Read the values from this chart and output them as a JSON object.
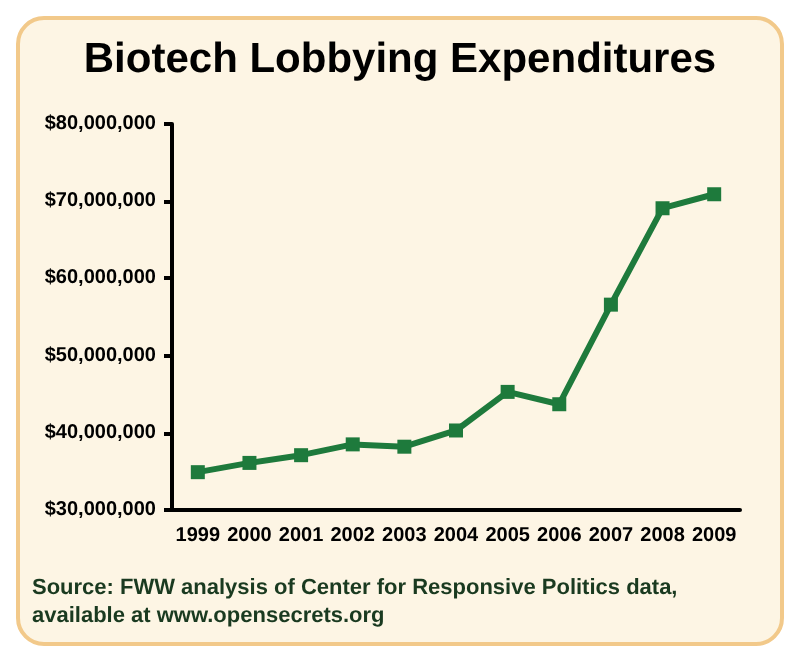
{
  "chart_data": {
    "type": "line",
    "title": "Biotech Lobbying Expenditures",
    "categories": [
      "1999",
      "2000",
      "2001",
      "2002",
      "2003",
      "2004",
      "2005",
      "2006",
      "2007",
      "2008",
      "2009"
    ],
    "values": [
      34900000,
      36100000,
      37100000,
      38500000,
      38200000,
      40300000,
      45300000,
      43700000,
      56600000,
      69100000,
      70900000
    ],
    "color": "#1e7a3c",
    "marker": "square",
    "line_style": "solid",
    "ylim": [
      30000000,
      80000000
    ],
    "yticks": [
      {
        "value": 30000000,
        "label": "$30,000,000"
      },
      {
        "value": 40000000,
        "label": "$40,000,000"
      },
      {
        "value": 50000000,
        "label": "$50,000,000"
      },
      {
        "value": 60000000,
        "label": "$60,000,000"
      },
      {
        "value": 70000000,
        "label": "$70,000,000"
      },
      {
        "value": 80000000,
        "label": "$80,000,000"
      }
    ],
    "grid": false,
    "annotations": [
      "Source: FWW analysis of Center for Responsive Politics data, available at www.opensecrets.org"
    ]
  }
}
